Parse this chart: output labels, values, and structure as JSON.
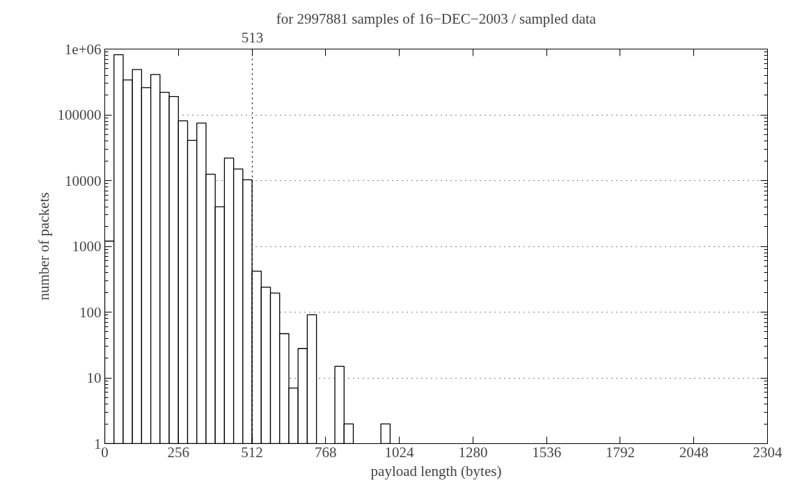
{
  "chart_data": {
    "type": "histogram",
    "title": "for 2997881 samples of 16−DEC−2003 / sampled data",
    "xlabel": "payload length (bytes)",
    "ylabel": "number of packets",
    "bins": [
      0,
      32,
      64,
      96,
      128,
      160,
      192,
      224,
      256,
      288,
      320,
      352,
      384,
      416,
      448,
      480,
      512,
      544,
      576,
      608,
      640,
      672,
      704,
      736,
      768,
      800,
      832,
      864,
      896,
      928,
      960,
      992
    ],
    "values": [
      1200,
      820000,
      340000,
      490000,
      260000,
      410000,
      220000,
      190000,
      81000,
      41000,
      75000,
      12500,
      4000,
      22000,
      15000,
      10300,
      420,
      240,
      195,
      47,
      7,
      28,
      91,
      null,
      null,
      15,
      2,
      null,
      null,
      null,
      2
    ],
    "color": "#ffffff",
    "log": "y",
    "xlim": [
      0,
      2304
    ],
    "ylim": [
      1,
      1000000
    ],
    "xticks": [
      0,
      256,
      512,
      768,
      1024,
      1280,
      1536,
      1792,
      2048,
      2304
    ],
    "yticks": [
      1,
      10,
      100,
      1000,
      10000,
      100000,
      {
        "value": 1000000,
        "label": "1e+06"
      }
    ],
    "grid": "y",
    "ref_lines": [
      {
        "axis": "x",
        "value": 513,
        "label": "513",
        "line_style": "dotted"
      }
    ]
  }
}
